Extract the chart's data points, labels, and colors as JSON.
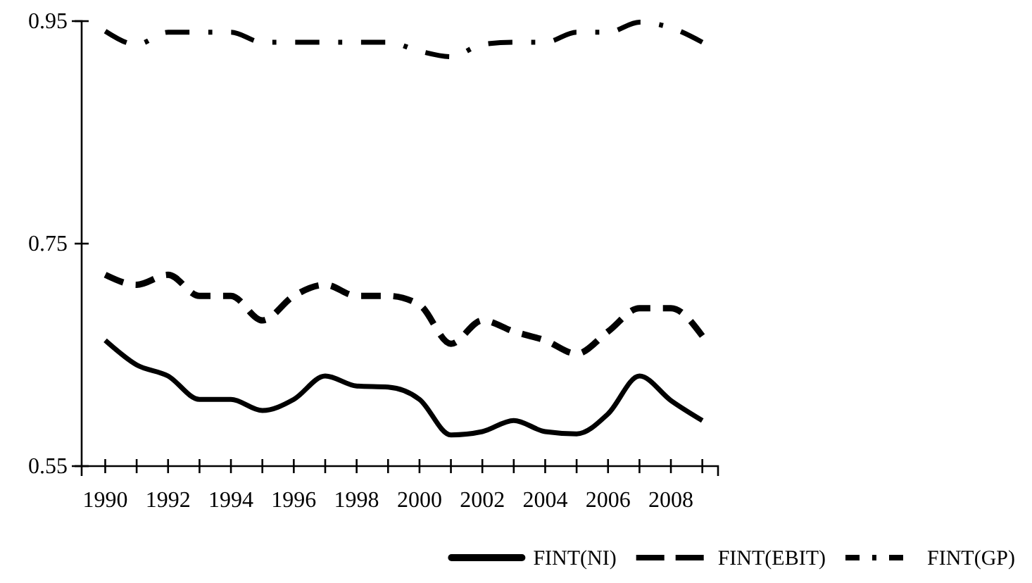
{
  "chart_data": {
    "type": "line",
    "x": [
      1990,
      1991,
      1992,
      1993,
      1994,
      1995,
      1996,
      1997,
      1998,
      1999,
      2000,
      2001,
      2002,
      2003,
      2004,
      2005,
      2006,
      2007,
      2008,
      2009
    ],
    "series": [
      {
        "name": "FINT(NI)",
        "color": "#000000",
        "line_style": "solid",
        "values": [
          0.663,
          0.641,
          0.631,
          0.61,
          0.61,
          0.6,
          0.61,
          0.631,
          0.622,
          0.621,
          0.61,
          0.578,
          0.581,
          0.591,
          0.581,
          0.579,
          0.597,
          0.631,
          0.609,
          0.591
        ]
      },
      {
        "name": "FINT(EBIT)",
        "color": "#000000",
        "line_style": "dashed",
        "values": [
          0.722,
          0.713,
          0.722,
          0.703,
          0.703,
          0.681,
          0.703,
          0.713,
          0.703,
          0.703,
          0.695,
          0.66,
          0.681,
          0.671,
          0.663,
          0.651,
          0.671,
          0.692,
          0.692,
          0.667
        ]
      },
      {
        "name": "FINT(GP)",
        "color": "#000000",
        "line_style": "dashdot",
        "values": [
          0.941,
          0.929,
          0.94,
          0.94,
          0.94,
          0.931,
          0.931,
          0.931,
          0.931,
          0.931,
          0.923,
          0.918,
          0.929,
          0.931,
          0.931,
          0.94,
          0.94,
          0.949,
          0.944,
          0.931
        ]
      }
    ],
    "xlim": [
      1989.25,
      2009.5
    ],
    "xticks": [
      1990,
      {
        "value": 1991,
        "label": null
      },
      1992,
      {
        "value": 1993,
        "label": null
      },
      1994,
      {
        "value": 1995,
        "label": null
      },
      1996,
      {
        "value": 1997,
        "label": null
      },
      1998,
      {
        "value": 1999,
        "label": null
      },
      2000,
      {
        "value": 2001,
        "label": null
      },
      2002,
      {
        "value": 2003,
        "label": null
      },
      2004,
      {
        "value": 2005,
        "label": null
      },
      2006,
      {
        "value": 2007,
        "label": null
      },
      2008,
      {
        "value": 2009,
        "label": null
      }
    ],
    "ylim": [
      0.55,
      0.95
    ],
    "yticks": [
      0.55,
      0.75,
      0.95
    ],
    "grid": false,
    "legend": "bottom right",
    "marker": "none"
  }
}
